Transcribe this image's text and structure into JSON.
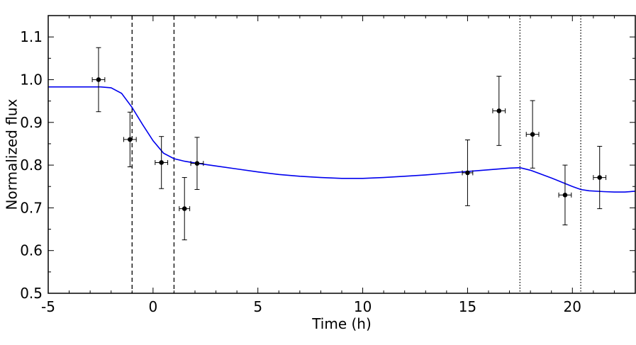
{
  "chart_data": {
    "type": "scatter",
    "title": "",
    "xlabel": "Time (h)",
    "ylabel": "Normalized flux",
    "xlim": [
      -5,
      23
    ],
    "ylim": [
      0.5,
      1.15
    ],
    "xticks": [
      -5,
      0,
      5,
      10,
      15,
      20
    ],
    "xtick_labels": [
      "-5",
      "0",
      "5",
      "10",
      "15",
      "20"
    ],
    "yticks": [
      0.5,
      0.6,
      0.7,
      0.8,
      0.9,
      1.0,
      1.1
    ],
    "ytick_labels": [
      "0.5",
      "0.6",
      "0.7",
      "0.8",
      "0.9",
      "1.0",
      "1.1"
    ],
    "grid": false,
    "legend": "none",
    "points": [
      {
        "x": -2.6,
        "y": 1.0,
        "xerr": 0.3,
        "yerr": 0.075
      },
      {
        "x": -1.1,
        "y": 0.86,
        "xerr": 0.3,
        "yerr": 0.064
      },
      {
        "x": 0.4,
        "y": 0.806,
        "xerr": 0.3,
        "yerr": 0.061
      },
      {
        "x": 1.5,
        "y": 0.698,
        "xerr": 0.25,
        "yerr": 0.073
      },
      {
        "x": 2.1,
        "y": 0.804,
        "xerr": 0.3,
        "yerr": 0.061
      },
      {
        "x": 15.0,
        "y": 0.782,
        "xerr": 0.25,
        "yerr": 0.077
      },
      {
        "x": 16.5,
        "y": 0.927,
        "xerr": 0.3,
        "yerr": 0.081
      },
      {
        "x": 18.1,
        "y": 0.872,
        "xerr": 0.3,
        "yerr": 0.079
      },
      {
        "x": 19.65,
        "y": 0.73,
        "xerr": 0.3,
        "yerr": 0.07
      },
      {
        "x": 21.3,
        "y": 0.771,
        "xerr": 0.3,
        "yerr": 0.073
      }
    ],
    "model_curve": {
      "color": "#0000ee",
      "x": [
        -5,
        -2.5,
        -2.0,
        -1.5,
        -1.0,
        -0.5,
        0.0,
        0.5,
        1.0,
        1.5,
        2.0,
        3.0,
        4.0,
        5.0,
        6.0,
        7.0,
        8.0,
        9.0,
        10.0,
        11.0,
        12.0,
        13.0,
        14.0,
        15.0,
        16.0,
        17.0,
        17.5,
        18.0,
        18.5,
        19.0,
        19.5,
        20.0,
        20.4,
        20.8,
        21.5,
        22.0,
        22.5,
        23.0
      ],
      "y": [
        0.983,
        0.983,
        0.981,
        0.968,
        0.935,
        0.895,
        0.857,
        0.828,
        0.815,
        0.809,
        0.805,
        0.798,
        0.791,
        0.784,
        0.778,
        0.774,
        0.771,
        0.769,
        0.769,
        0.771,
        0.774,
        0.777,
        0.781,
        0.785,
        0.789,
        0.793,
        0.794,
        0.788,
        0.779,
        0.77,
        0.76,
        0.75,
        0.743,
        0.74,
        0.738,
        0.737,
        0.737,
        0.739
      ]
    },
    "dashed_lines_x": [
      -1.0,
      1.0
    ],
    "dotted_lines_x": [
      17.5,
      20.4
    ]
  }
}
